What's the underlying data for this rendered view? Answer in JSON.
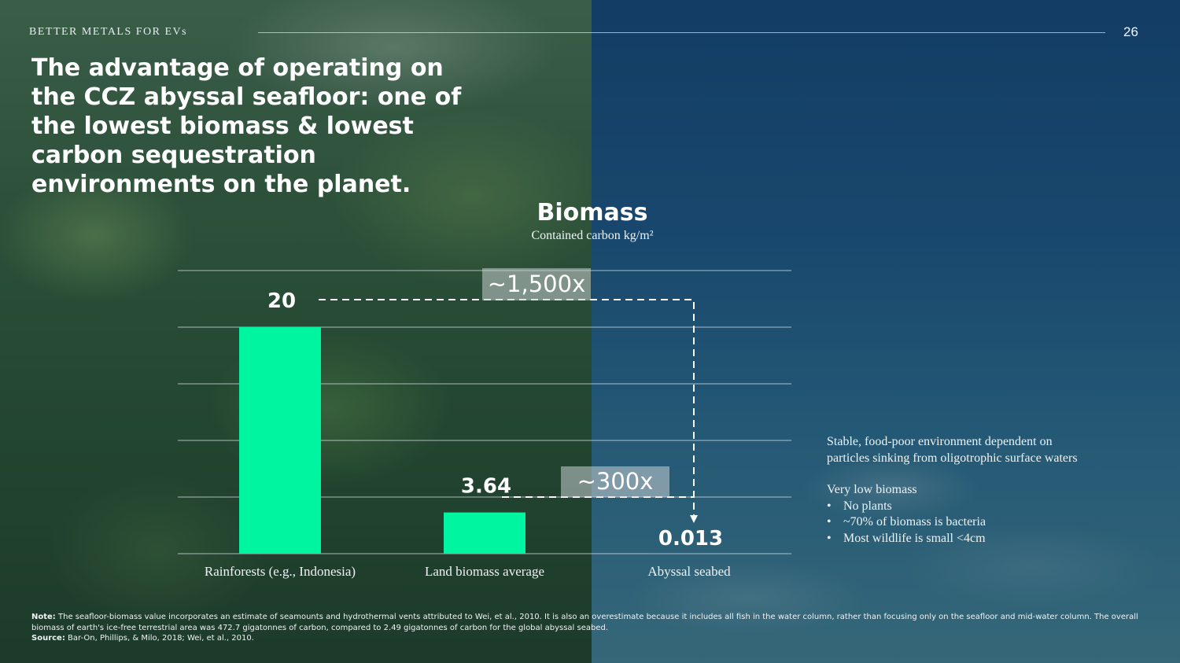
{
  "header": {
    "label": "BETTER METALS FOR EVs",
    "page_number": "26"
  },
  "headline": "The advantage of operating on the CCZ abyssal seafloor: one of the lowest biomass & lowest carbon sequestration environments on the planet.",
  "chart_data": {
    "type": "bar",
    "title": "Biomass",
    "subtitle": "Contained carbon kg/m²",
    "categories": [
      "Rainforests (e.g., Indonesia)",
      "Land biomass average",
      "Abyssal seabed"
    ],
    "values": [
      20,
      3.64,
      0.013
    ],
    "value_labels": [
      "20",
      "3.64",
      "0.013"
    ],
    "ylim": [
      0,
      25
    ],
    "grid": true,
    "bar_color": "#00f5a0",
    "annotations": [
      {
        "label": "~1,500x",
        "from": "Rainforests (e.g., Indonesia)",
        "to": "Abyssal seabed"
      },
      {
        "label": "~300x",
        "from": "Land biomass average",
        "to": "Abyssal seabed"
      }
    ]
  },
  "side_notes": {
    "intro": "Stable, food-poor environment dependent on particles sinking from oligotrophic surface waters",
    "heading": "Very low biomass",
    "bullets": [
      "No plants",
      "~70% of biomass is bacteria",
      "Most wildlife is small <4cm"
    ]
  },
  "footnote": {
    "note_label": "Note:",
    "note_text": "The seafloor-biomass value incorporates an estimate of seamounts and hydrothermal vents attributed to Wei, et al., 2010. It is also an overestimate because it includes all fish in the water column, rather than focusing only on the seafloor and mid-water column. The overall biomass of earth's ice-free terrestrial area was 472.7 gigatonnes of carbon, compared to 2.49 gigatonnes of carbon for the global abyssal seabed.",
    "source_label": "Source:",
    "source_text": "Bar-On, Phillips, & Milo, 2018; Wei, et al., 2010."
  }
}
